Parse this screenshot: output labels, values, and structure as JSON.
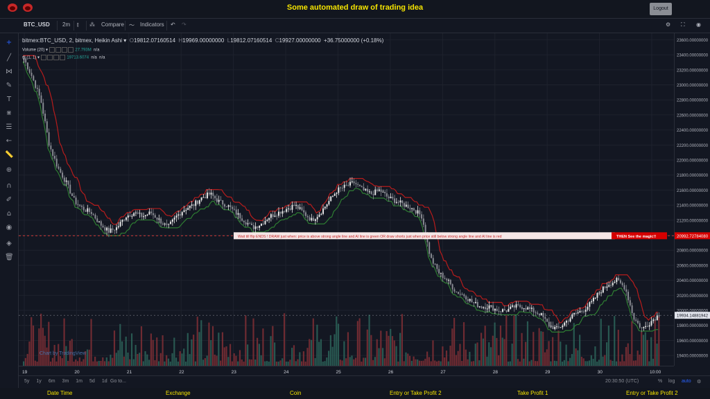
{
  "header": {
    "title": "Some automated draw of trading idea",
    "logout_label": "Logout"
  },
  "toolbar": {
    "symbol": "BTC_USD",
    "interval": "2m",
    "compare_label": "Compare",
    "indicators_label": "Indicators"
  },
  "legend": {
    "main": "bitmex:BTC_USD, 2, bitmex, Heikin Ashi",
    "o_label": "O",
    "o": "19812.07160514",
    "h_label": "H",
    "h": "19969.00000000",
    "l_label": "L",
    "l": "19812.07160514",
    "c_label": "C",
    "c": "19927.00000000",
    "change": "+36.75000000 (+0.18%)",
    "volume_label": "Volume (20)",
    "volume_value": "27.793M",
    "volume_na": "n/a",
    "ind_label": "nl (1, 1)",
    "ind_value": "19713.6074",
    "ind_na1": "n/a",
    "ind_na2": "n/a"
  },
  "annotation": {
    "text": "Wait till flip ENDS !   DRAW just when:  price is above strong angle line and AI line is green          OR          draw shorts just when price still below strong angle line and AI line is red",
    "tag": "THEN See the magic!!",
    "price_label": "20992.72784080"
  },
  "price_axis": {
    "ticks": [
      "23600.00000000",
      "23400.00000000",
      "23200.00000000",
      "23000.00000000",
      "22800.00000000",
      "22600.00000000",
      "22400.00000000",
      "22200.00000000",
      "22000.00000000",
      "21800.00000000",
      "21600.00000000",
      "21400.00000000",
      "21200.00000000",
      "21000.00000000",
      "20800.00000000",
      "20600.00000000",
      "20400.00000000",
      "20200.00000000",
      "20000.00000000",
      "19800.00000000",
      "19600.00000000",
      "19400.00000000"
    ],
    "current": "19934.14881942"
  },
  "time_axis": {
    "ticks": [
      "19",
      "20",
      "21",
      "22",
      "23",
      "24",
      "25",
      "26",
      "27",
      "28",
      "29",
      "30",
      "10:00"
    ]
  },
  "bottom": {
    "ranges": [
      "5y",
      "1y",
      "6m",
      "3m",
      "1m",
      "5d",
      "1d"
    ],
    "goto": "Go to...",
    "time": "20:30:50 (UTC)",
    "pct": "%",
    "log": "log",
    "auto": "auto"
  },
  "watermark": "Chart by TradingView",
  "footer": [
    "Date Time",
    "Exchange",
    "Coin",
    "Entry or Take Profit 2",
    "Take Profit 1",
    "Entry or Take Profit 2"
  ],
  "chart_data": {
    "type": "candlestick",
    "title": "bitmex:BTC_USD, 2, bitmex, Heikin Ashi",
    "ylim": [
      19300,
      23650
    ],
    "x_ticks": [
      "19",
      "20",
      "21",
      "22",
      "23",
      "24",
      "25",
      "26",
      "27",
      "28",
      "29",
      "30",
      "10:00"
    ],
    "price_path": [
      23350,
      23100,
      22800,
      22200,
      21900,
      21700,
      21450,
      21350,
      21300,
      21150,
      21050,
      21100,
      21250,
      21300,
      21250,
      21300,
      21200,
      21100,
      21250,
      21350,
      21400,
      21500,
      21550,
      21450,
      21400,
      21300,
      21200,
      21100,
      21150,
      21250,
      21300,
      21350,
      21400,
      21300,
      21200,
      21300,
      21450,
      21600,
      21650,
      21700,
      21600,
      21550,
      21600,
      21500,
      21450,
      21400,
      21350,
      21250,
      20700,
      20500,
      20400,
      20250,
      20200,
      20100,
      20050,
      20050,
      20000,
      20000,
      20050,
      20050,
      20000,
      19950,
      19800,
      19750,
      19850,
      19950,
      20000,
      20100,
      20250,
      20350,
      20400,
      20300,
      19900,
      19750,
      19850,
      19950
    ]
  },
  "colors": {
    "up": "#26a69a",
    "down": "#ef5350",
    "candle_up": "#e8e8e8",
    "candle_down": "#8a8d94",
    "angle_line": "#b71c1c",
    "ai_line": "#2e7d32",
    "accent": "#f5e400",
    "annotation_bg": "#f5e6e6",
    "annotation_tag": "#d50000"
  }
}
